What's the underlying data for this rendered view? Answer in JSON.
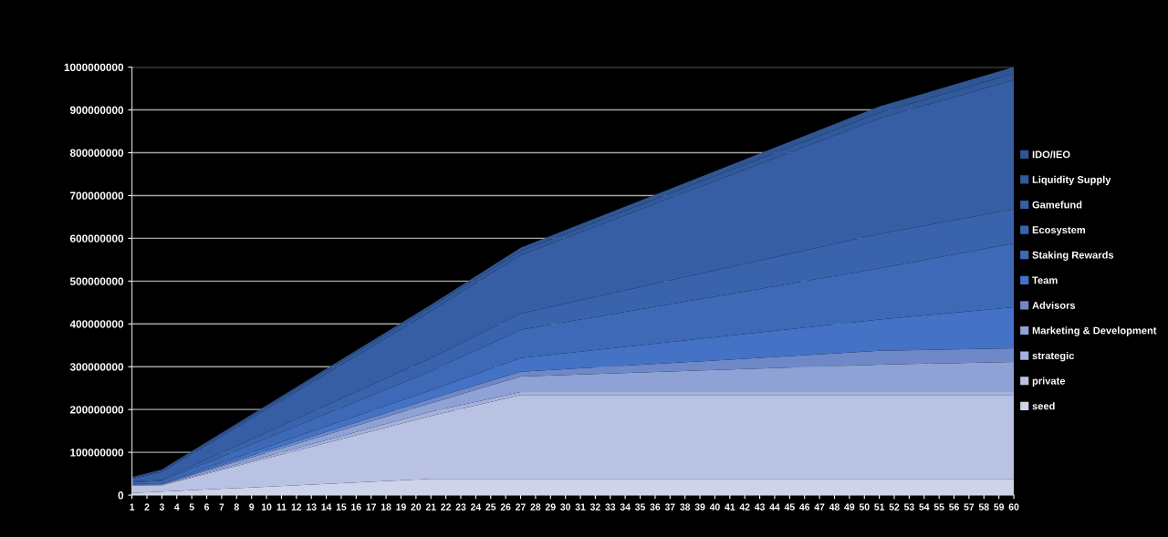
{
  "chart_data": {
    "type": "area",
    "stacked": true,
    "x": [
      1,
      3,
      21,
      27,
      51,
      60
    ],
    "xlim": [
      1,
      60
    ],
    "xticks": [
      1,
      2,
      3,
      4,
      5,
      6,
      7,
      8,
      9,
      10,
      11,
      12,
      13,
      14,
      15,
      16,
      17,
      18,
      19,
      20,
      21,
      22,
      23,
      24,
      25,
      26,
      27,
      28,
      29,
      30,
      31,
      32,
      33,
      34,
      35,
      36,
      37,
      38,
      39,
      40,
      41,
      42,
      43,
      44,
      45,
      46,
      47,
      48,
      49,
      50,
      51,
      52,
      53,
      54,
      55,
      56,
      57,
      58,
      59,
      60
    ],
    "ylim": [
      0,
      1000000000
    ],
    "yticks": [
      0,
      100000000,
      200000000,
      300000000,
      400000000,
      500000000,
      600000000,
      700000000,
      800000000,
      900000000,
      1000000000
    ],
    "grid": "y",
    "legend": "right",
    "series": [
      {
        "name": "seed",
        "color": "#cdd3ea",
        "values": [
          5000000,
          8000000,
          38000000,
          38000000,
          38000000,
          38000000
        ]
      },
      {
        "name": "private",
        "color": "#b9c2e2",
        "values": [
          17000000,
          15000000,
          147000000,
          196000000,
          196000000,
          196000000
        ]
      },
      {
        "name": "strategic",
        "color": "#a6b1dc",
        "values": [
          1000000,
          1000000,
          10000000,
          7000000,
          7000000,
          7000000
        ]
      },
      {
        "name": "Marketing & Development",
        "color": "#8ea2d6",
        "values": [
          1000000,
          1000000,
          20000000,
          36000000,
          64000000,
          70000000
        ]
      },
      {
        "name": "Advisors",
        "color": "#6f88c8",
        "values": [
          1000000,
          1000000,
          10000000,
          11000000,
          32000000,
          32000000
        ]
      },
      {
        "name": "Team",
        "color": "#4472c4",
        "values": [
          2000000,
          2000000,
          20000000,
          32000000,
          73000000,
          96000000
        ]
      },
      {
        "name": "Staking Rewards",
        "color": "#3d69b6",
        "values": [
          3000000,
          5000000,
          45000000,
          66000000,
          120000000,
          149000000
        ]
      },
      {
        "name": "Ecosystem",
        "color": "#3964ad",
        "values": [
          2000000,
          3000000,
          30000000,
          38000000,
          80000000,
          80000000
        ]
      },
      {
        "name": "Gamefund",
        "color": "#355ea4",
        "values": [
          6000000,
          18000000,
          110000000,
          137000000,
          270000000,
          302000000
        ]
      },
      {
        "name": "Liquidity Supply",
        "color": "#32599b",
        "values": [
          2000000,
          3000000,
          10000000,
          9000000,
          13000000,
          15000000
        ]
      },
      {
        "name": "IDO/IEO",
        "color": "#2f5593",
        "values": [
          2000000,
          3000000,
          5000000,
          8000000,
          15000000,
          15000000
        ]
      }
    ]
  }
}
